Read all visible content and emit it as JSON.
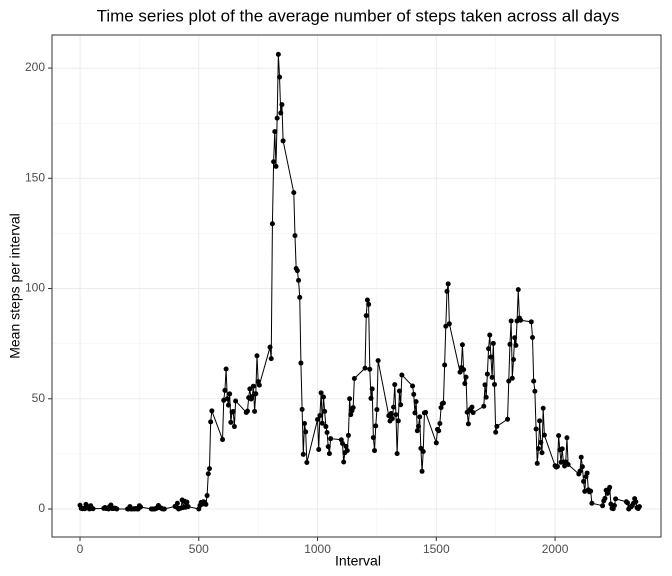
{
  "chart_data": {
    "type": "line",
    "title": "Time series plot of the average number of steps taken across all days",
    "x_label": "Interval",
    "y_label": "Mean steps per interval",
    "color": "#000000",
    "grid": true,
    "xlim": [
      -118,
      2446
    ],
    "xticks": [
      0,
      500,
      1000,
      1500,
      2000
    ],
    "ylim": [
      -12.7,
      215
    ],
    "yticks": [
      0,
      50,
      100,
      150,
      200
    ],
    "x": [
      0,
      5,
      10,
      15,
      20,
      25,
      30,
      35,
      40,
      45,
      50,
      55,
      100,
      105,
      110,
      115,
      120,
      125,
      130,
      135,
      140,
      145,
      150,
      155,
      200,
      205,
      210,
      215,
      220,
      225,
      230,
      235,
      240,
      245,
      250,
      255,
      300,
      305,
      310,
      315,
      320,
      325,
      330,
      335,
      340,
      345,
      350,
      355,
      400,
      405,
      410,
      415,
      420,
      425,
      430,
      435,
      440,
      445,
      450,
      455,
      500,
      505,
      510,
      515,
      520,
      525,
      530,
      535,
      540,
      545,
      550,
      555,
      600,
      605,
      610,
      615,
      620,
      625,
      630,
      635,
      640,
      645,
      650,
      655,
      700,
      705,
      710,
      715,
      720,
      725,
      730,
      735,
      740,
      745,
      750,
      755,
      800,
      805,
      810,
      815,
      820,
      825,
      830,
      835,
      840,
      845,
      850,
      855,
      900,
      905,
      910,
      915,
      920,
      925,
      930,
      935,
      940,
      945,
      950,
      955,
      1000,
      1005,
      1010,
      1015,
      1020,
      1025,
      1030,
      1035,
      1040,
      1045,
      1050,
      1055,
      1100,
      1105,
      1110,
      1115,
      1120,
      1125,
      1130,
      1135,
      1140,
      1145,
      1150,
      1155,
      1200,
      1205,
      1210,
      1215,
      1220,
      1225,
      1230,
      1235,
      1240,
      1245,
      1250,
      1255,
      1300,
      1305,
      1310,
      1315,
      1320,
      1325,
      1330,
      1335,
      1340,
      1345,
      1350,
      1355,
      1400,
      1405,
      1410,
      1415,
      1420,
      1425,
      1430,
      1435,
      1440,
      1445,
      1450,
      1455,
      1500,
      1505,
      1510,
      1515,
      1520,
      1525,
      1530,
      1535,
      1540,
      1545,
      1550,
      1555,
      1600,
      1605,
      1610,
      1615,
      1620,
      1625,
      1630,
      1635,
      1640,
      1645,
      1650,
      1655,
      1700,
      1705,
      1710,
      1715,
      1720,
      1725,
      1730,
      1735,
      1740,
      1745,
      1750,
      1755,
      1800,
      1805,
      1810,
      1815,
      1820,
      1825,
      1830,
      1835,
      1840,
      1845,
      1850,
      1855,
      1900,
      1905,
      1910,
      1915,
      1920,
      1925,
      1930,
      1935,
      1940,
      1945,
      1950,
      1955,
      2000,
      2005,
      2010,
      2015,
      2020,
      2025,
      2030,
      2035,
      2040,
      2045,
      2050,
      2055,
      2100,
      2105,
      2110,
      2115,
      2120,
      2125,
      2130,
      2135,
      2140,
      2145,
      2150,
      2155,
      2200,
      2205,
      2210,
      2215,
      2220,
      2225,
      2230,
      2235,
      2240,
      2245,
      2250,
      2255,
      2300,
      2305,
      2310,
      2315,
      2320,
      2325,
      2330,
      2335,
      2340,
      2345,
      2350,
      2355
    ],
    "values": [
      1.7,
      0.3,
      0.1,
      0.2,
      0.1,
      2.1,
      0.5,
      0.9,
      0,
      1.5,
      0.3,
      0.1,
      0.3,
      0.7,
      0.2,
      0.3,
      0,
      1.1,
      1.8,
      0.2,
      0.2,
      0.4,
      0.3,
      0,
      0,
      0,
      1.1,
      0,
      0,
      0.1,
      0,
      0.2,
      0,
      0,
      1.5,
      0.9,
      0,
      0,
      0,
      0,
      0.2,
      0.6,
      1.6,
      0.6,
      0.5,
      0.1,
      0,
      0,
      1.2,
      0.9,
      2.6,
      0,
      0.3,
      0.4,
      4.1,
      0.7,
      3.5,
      0.8,
      3.1,
      1.1,
      0,
      1.6,
      3,
      2.2,
      3.3,
      3,
      2.1,
      6.1,
      16,
      18.3,
      39.5,
      44.5,
      31.5,
      49.3,
      53.8,
      63.5,
      50,
      47.1,
      52.2,
      39.3,
      44,
      44.2,
      37.4,
      49,
      43.8,
      44.4,
      50.5,
      54.5,
      49.9,
      51,
      55.7,
      44.3,
      52.3,
      69.5,
      57.8,
      56.2,
      73.4,
      68.2,
      129.4,
      157.5,
      171.2,
      155.4,
      177.3,
      206.2,
      195.9,
      179.6,
      183.4,
      167,
      143.5,
      124,
      109.1,
      108.1,
      103.7,
      96,
      66.2,
      45.2,
      24.8,
      38.8,
      35,
      21.1,
      40.6,
      27,
      42.4,
      52.7,
      38.9,
      50.8,
      44.3,
      37.4,
      34.7,
      28.3,
      25.1,
      31.9,
      31.4,
      29.7,
      21.3,
      25.5,
      28.4,
      26.5,
      33.4,
      50,
      42.8,
      44.6,
      46,
      59.2,
      63.9,
      87.7,
      94.8,
      92.8,
      63.4,
      50.2,
      54.5,
      32.4,
      26.5,
      37.7,
      45.1,
      67.3,
      42.3,
      39.9,
      43.3,
      41,
      46.2,
      56.4,
      42.8,
      25.1,
      40,
      53.5,
      47.3,
      60.8,
      55.8,
      52,
      43.6,
      48.7,
      35.5,
      37.5,
      41.8,
      27.5,
      17.1,
      26.1,
      43.6,
      43.8,
      30,
      36.1,
      35.5,
      38.8,
      46,
      47.8,
      48.1,
      65.3,
      82.9,
      98.7,
      102.1,
      84,
      62.1,
      64.1,
      74.5,
      63.2,
      56.9,
      59.8,
      43.9,
      38.6,
      44.7,
      45.5,
      46.2,
      43.7,
      46.6,
      56.3,
      50.7,
      61.2,
      72.7,
      78.9,
      68.9,
      59.7,
      75.1,
      56.5,
      34.8,
      37.5,
      40.7,
      58,
      74.7,
      85.3,
      59.3,
      67.8,
      77.7,
      74.2,
      85.3,
      99.5,
      86.6,
      85.6,
      84.9,
      77.8,
      58,
      53.4,
      36.3,
      20.7,
      27.4,
      40,
      30.2,
      25.5,
      45.7,
      33.5,
      19.6,
      19,
      19.3,
      33.3,
      26.8,
      21.2,
      27.3,
      21.3,
      19.5,
      21.3,
      32.3,
      20.2,
      15.9,
      17.2,
      23.5,
      19.2,
      12.5,
      8,
      14.7,
      16.3,
      8.7,
      7.8,
      8.1,
      2.6,
      1.5,
      3.7,
      4.8,
      8.5,
      7.1,
      8.7,
      9.8,
      2.2,
      0.3,
      0.1,
      1.6,
      4.6,
      3.3,
      2.8,
      0,
      0.8,
      1,
      1.6,
      2.6,
      4.7,
      3.3,
      0.6,
      0.2,
      1.1
    ]
  }
}
